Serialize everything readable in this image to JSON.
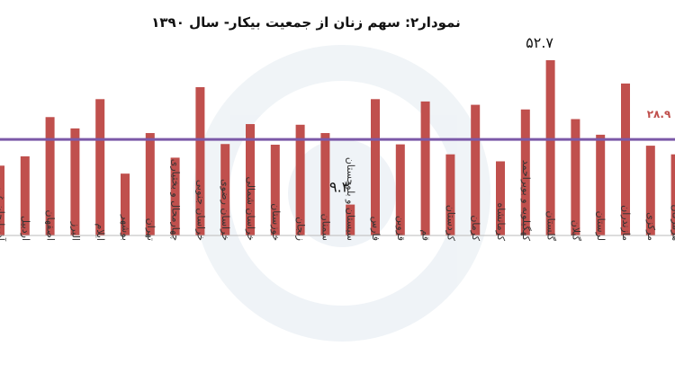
{
  "chart_data": {
    "type": "bar",
    "title": "نمودار۲: سهم زنان از جمعیت بیکار- سال ۱۳۹۰",
    "xlabel": "",
    "ylabel": "",
    "ylim": [
      0,
      60
    ],
    "grid": false,
    "categories": [
      "آذربایجان غربی",
      "اردبیل",
      "اصفهان",
      "البرز",
      "ایلام",
      "بوشهر",
      "تهران",
      "چهارمحال و بختیاری",
      "خراسان جنوبی",
      "خراسان رضوی",
      "خراسان شمالی",
      "خوزستان",
      "زنجان",
      "سمنان",
      "سیستان و بلوچستان",
      "فارس",
      "قزوین",
      "قم",
      "کردستان",
      "کرمان",
      "کرمانشاه",
      "کهگیلویه و بویراحمد",
      "گلستان",
      "گیلان",
      "لرستان",
      "مازندران",
      "مرکزی",
      "هرمزگان"
    ],
    "values": [
      21.0,
      23.8,
      35.6,
      32.2,
      41.0,
      18.6,
      30.8,
      23.4,
      44.6,
      27.5,
      33.5,
      27.3,
      33.3,
      30.8,
      9.3,
      41.0,
      27.4,
      40.3,
      24.4,
      39.3,
      22.3,
      37.9,
      52.7,
      35.0,
      30.3,
      45.7,
      27.0,
      24.4
    ],
    "series_color": "#c0504d",
    "reference_line": {
      "value": 28.9,
      "label": "۲۸.۹",
      "color": "#7b59a8",
      "label_color": "#c0504d"
    },
    "annotations": [
      {
        "category_index": 14,
        "text": "۹.۳"
      },
      {
        "category_index": 22,
        "text": "۵۲.۷"
      }
    ]
  }
}
